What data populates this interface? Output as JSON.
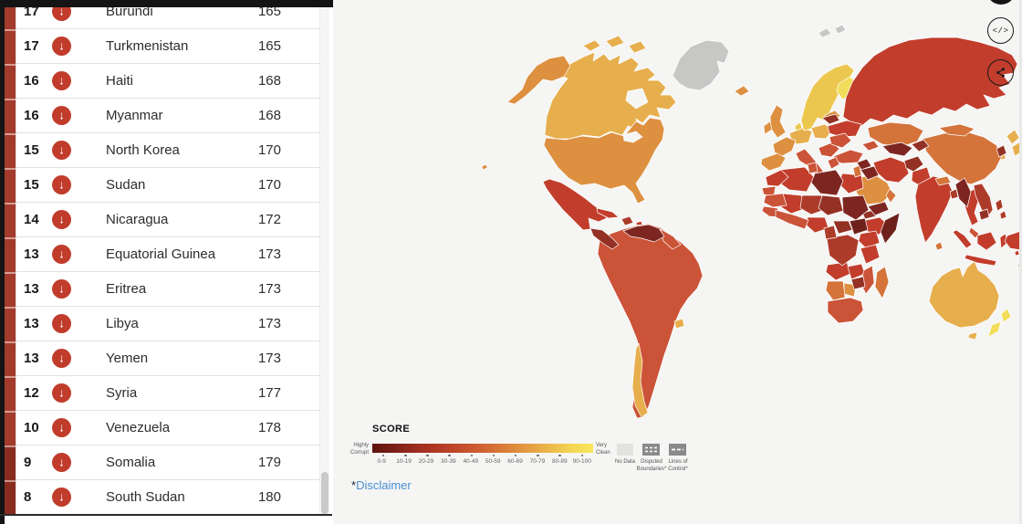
{
  "window": {
    "bg": "#f5f5f4",
    "panel_bg": "#ffffff",
    "chrome": "#141414"
  },
  "toolbar": {
    "embed_label": "</>"
  },
  "table": {
    "icon_color": "#c13c2b",
    "icon_glyph": "↓",
    "strip_colors": {
      "low": "#8a2b20",
      "mid": "#a23b2b"
    },
    "rows": [
      {
        "score": "17",
        "country": "Burundi",
        "rank": "165"
      },
      {
        "score": "17",
        "country": "Turkmenistan",
        "rank": "165"
      },
      {
        "score": "16",
        "country": "Haiti",
        "rank": "168"
      },
      {
        "score": "16",
        "country": "Myanmar",
        "rank": "168"
      },
      {
        "score": "15",
        "country": "North Korea",
        "rank": "170"
      },
      {
        "score": "15",
        "country": "Sudan",
        "rank": "170"
      },
      {
        "score": "14",
        "country": "Nicaragua",
        "rank": "172"
      },
      {
        "score": "13",
        "country": "Equatorial Guinea",
        "rank": "173"
      },
      {
        "score": "13",
        "country": "Eritrea",
        "rank": "173"
      },
      {
        "score": "13",
        "country": "Libya",
        "rank": "173"
      },
      {
        "score": "13",
        "country": "Yemen",
        "rank": "173"
      },
      {
        "score": "12",
        "country": "Syria",
        "rank": "177"
      },
      {
        "score": "10",
        "country": "Venezuela",
        "rank": "178"
      },
      {
        "score": "9",
        "country": "Somalia",
        "rank": "179"
      },
      {
        "score": "8",
        "country": "South Sudan",
        "rank": "180"
      }
    ]
  },
  "legend": {
    "title": "SCORE",
    "left_label": "Highly\nCorrupt",
    "right_label": "Very\nClean",
    "gradient": [
      "#5e1410",
      "#7c1f18",
      "#9c2c1f",
      "#b43a26",
      "#c44c2c",
      "#d06233",
      "#da7d39",
      "#e39a42",
      "#ebb84b",
      "#f3d653",
      "#f8e75a"
    ],
    "ticks": [
      "0-9",
      "10-19",
      "20-29",
      "30-39",
      "40-49",
      "50-59",
      "60-69",
      "70-79",
      "80-89",
      "90-100"
    ],
    "no_data_label": "No Data",
    "disputed_label": "Disputed\nBoundaries*",
    "control_label": "Lines of\nControl*",
    "no_data_color": "#e2e2e1",
    "swatch_dark": "#8a8a8a"
  },
  "disclaimer": {
    "star": "*",
    "label": "Disclaimer",
    "star_color": "#16243f",
    "link_color": "#4a90d2"
  },
  "map": {
    "colors": {
      "gray": "#c7c7c6",
      "c1": "#6e211b",
      "c2": "#7d2621",
      "c3": "#943125",
      "c4": "#ad3b2a",
      "c5": "#c23d2c",
      "c6": "#cb5338",
      "c7": "#d4743b",
      "c8": "#dd9040",
      "c9": "#e6ae4c",
      "c10": "#ebc74f",
      "c11": "#f1dd5a",
      "lake": "#f5f5f4"
    }
  }
}
